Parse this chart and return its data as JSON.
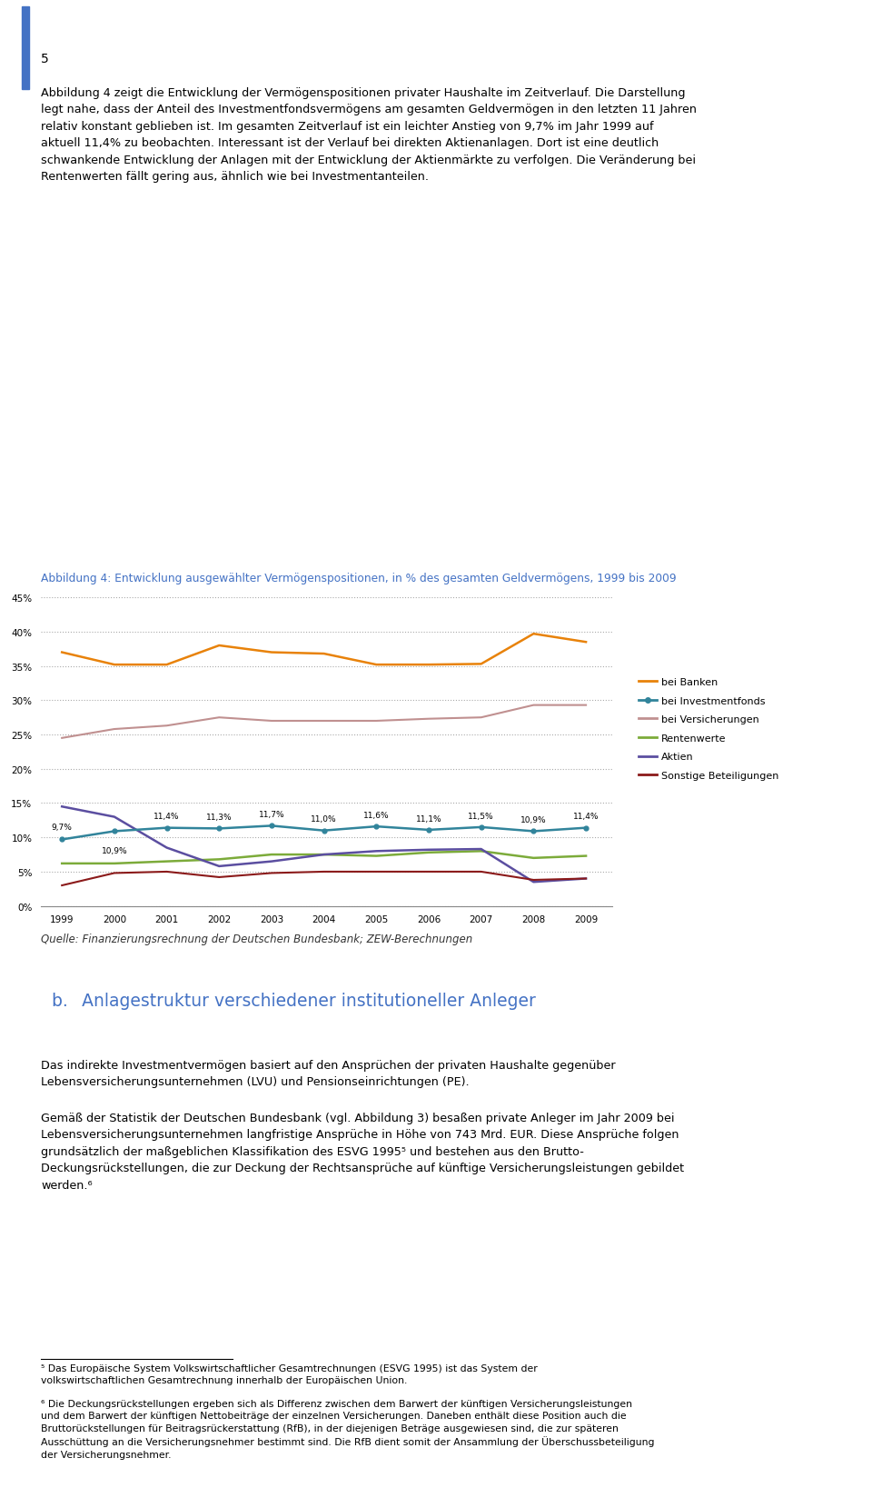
{
  "title": "Abbildung 4: Entwicklung ausgewählter Vermögenspositionen, in % des gesamten Geldvermögens, 1999 bis 2009",
  "title_color": "#4472C4",
  "years": [
    1999,
    2000,
    2001,
    2002,
    2003,
    2004,
    2005,
    2006,
    2007,
    2008,
    2009
  ],
  "bei_banken": [
    37.0,
    35.2,
    35.2,
    38.0,
    37.0,
    36.8,
    35.2,
    35.2,
    35.3,
    39.7,
    38.5
  ],
  "bei_investmentfonds": [
    9.7,
    10.9,
    11.4,
    11.3,
    11.7,
    11.0,
    11.6,
    11.1,
    11.5,
    10.9,
    11.4
  ],
  "bei_versicherungen": [
    24.5,
    25.8,
    26.3,
    27.5,
    27.0,
    27.0,
    27.0,
    27.3,
    27.5,
    29.3,
    29.3
  ],
  "rentenwerte": [
    6.2,
    6.2,
    6.5,
    6.8,
    7.5,
    7.5,
    7.3,
    7.8,
    8.0,
    7.0,
    7.3
  ],
  "aktien": [
    14.5,
    13.0,
    8.5,
    5.8,
    6.5,
    7.5,
    8.0,
    8.2,
    8.3,
    3.5,
    4.0
  ],
  "sonstige_beteiligungen": [
    3.0,
    4.8,
    5.0,
    4.2,
    4.8,
    5.0,
    5.0,
    5.0,
    5.0,
    3.8,
    4.0
  ],
  "colors": {
    "bei_banken": "#E8820A",
    "bei_investmentfonds": "#31849B",
    "bei_versicherungen": "#C09090",
    "rentenwerte": "#7CAB3A",
    "aktien": "#5B4EA0",
    "sonstige_beteiligungen": "#8B1A1A"
  },
  "legend_labels": [
    "bei Banken",
    "bei Investmentfonds",
    "bei Versicherungen",
    "Rentenwerte",
    "Aktien",
    "Sonstige Beteiligungen"
  ],
  "yticks": [
    0,
    5,
    10,
    15,
    20,
    25,
    30,
    35,
    40,
    45
  ],
  "ylim": [
    0,
    47
  ],
  "background_color": "#FFFFFF",
  "investmentfonds_labels": [
    "9,7%",
    "10,9%",
    "11,4%",
    "11,3%",
    "11,7%",
    "11,0%",
    "11,6%",
    "11,1%",
    "11,5%",
    "10,9%",
    "11,4%"
  ],
  "source_text": "Quelle: Finanzierungsrechnung der Deutschen Bundesbank; ZEW-Berechnungen",
  "page_number": "5",
  "top_para": "Abbildung 4 zeigt die Entwicklung der Vermögenspositionen privater Haushalte im Zeitverlauf. Die Darstellung legt nahe, dass der Anteil des Investmentfondsvermögens am gesamten Geldvermögen in den letzten 11 Jahren relativ konstant geblieben ist. Im gesamten Zeitverlauf ist ein leichter Anstieg von 9,7% im Jahr 1999 auf aktuell 11,4% zu beobachten. Interessant ist der Verlauf bei direkten Aktienanlagen. Dort ist eine deutlich schwankende Entwicklung der Anlagen mit der Entwicklung der Aktienmärkte zu verfolgen. Die Veränderung bei Rentenwerten fällt gering aus, ähnlich wie bei Investmentanteilen.",
  "section_heading": "b.  Anlagestruktur verschiedener institutioneller Anleger",
  "section_heading_color": "#4472C4",
  "para1": "Das indirekte Investmentvermögen basiert auf den Ansprüchen der privaten Haushalte gegenüber Lebensversicherungsunternehmen (LVU) und Pensionseinrichtungen (PE).",
  "para2": "Gemäß der Statistik der Deutschen Bundesbank (vgl. Abbildung 3) besaßen private Anleger im Jahr 2009 bei Lebensversicherungsunternehmen langfristige Ansprüche in Höhe von 743 Mrd. EUR. Diese Ansprüche folgen grundsätzlich der maßgeblichen Klassifikation des ESVG 1995⁵ und bestehen aus den Brutto-Deckungsrückstellungen, die zur Deckung der Rechtsansprüche auf künftige Versicherungsleistungen gebildet werden.⁶",
  "footnote5": "⁵ Das Europäische System Volkswirtschaftlicher Gesamtrechnungen (ESVG 1995) ist das System der volkswirtschaftlichen Gesamtrechnung innerhalb der Europäischen Union.",
  "footnote6": "⁶ Die Deckungsrückstellungen ergeben sich als Differenz zwischen dem Barwert der künftigen Versicherungsleistungen und dem Barwert der künftigen Nettobeiträge der einzelnen Versicherungen. Daneben enthält diese Position auch die Bruttorückstellungen für Beitragsrückerstattung (RfB), in der diejenigen Beträge ausgewiesen sind, die zur späteren Ausschüttung an die Versicherungsnehmer bestimmt sind. Die RfB dient somit der Ansammlung der Überschussbeteiligung der Versicherungsnehmer."
}
